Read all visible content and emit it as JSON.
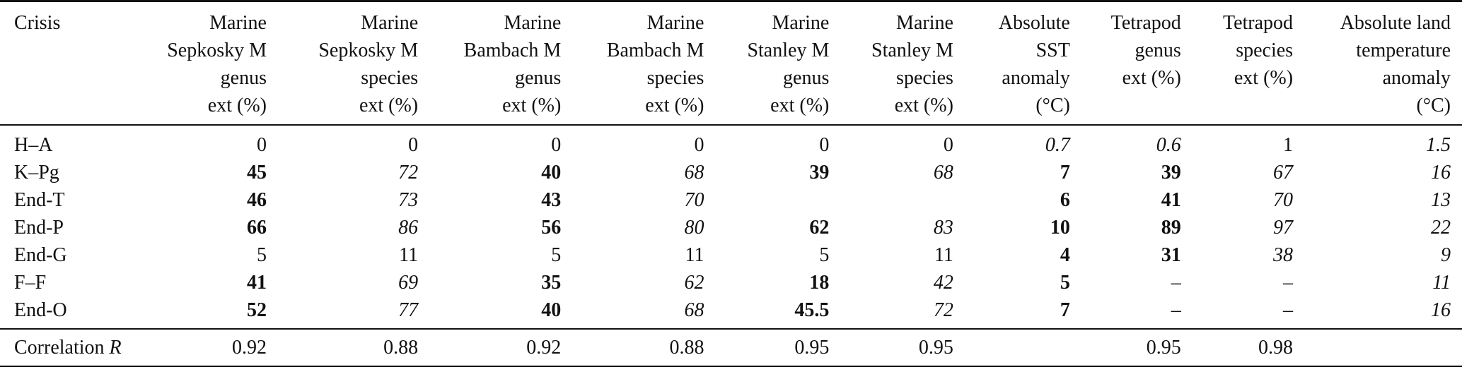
{
  "table": {
    "columns": [
      {
        "lines": [
          "Crisis"
        ]
      },
      {
        "lines": [
          "Marine",
          "Sepkosky M",
          "genus",
          "ext (%)"
        ]
      },
      {
        "lines": [
          "Marine",
          "Sepkosky M",
          "species",
          "ext (%)"
        ]
      },
      {
        "lines": [
          "Marine",
          "Bambach M",
          "genus",
          "ext (%)"
        ]
      },
      {
        "lines": [
          "Marine",
          "Bambach M",
          "species",
          "ext (%)"
        ]
      },
      {
        "lines": [
          "Marine",
          "Stanley M",
          "genus",
          "ext (%)"
        ]
      },
      {
        "lines": [
          "Marine",
          "Stanley M",
          "species",
          "ext (%)"
        ]
      },
      {
        "lines": [
          "Absolute",
          "SST",
          "anomaly",
          "(°C)"
        ]
      },
      {
        "lines": [
          "Tetrapod",
          "genus",
          "ext (%)"
        ]
      },
      {
        "lines": [
          "Tetrapod",
          "species",
          "ext (%)"
        ]
      },
      {
        "lines": [
          "Absolute land",
          "temperature",
          "anomaly",
          "(°C)"
        ]
      }
    ],
    "rows": [
      {
        "cells": [
          {
            "v": "H–A",
            "s": ""
          },
          {
            "v": "0",
            "s": ""
          },
          {
            "v": "0",
            "s": ""
          },
          {
            "v": "0",
            "s": ""
          },
          {
            "v": "0",
            "s": ""
          },
          {
            "v": "0",
            "s": ""
          },
          {
            "v": "0",
            "s": ""
          },
          {
            "v": "0.7",
            "s": "i"
          },
          {
            "v": "0.6",
            "s": "i"
          },
          {
            "v": "1",
            "s": ""
          },
          {
            "v": "1.5",
            "s": "i"
          }
        ]
      },
      {
        "cells": [
          {
            "v": "K–Pg",
            "s": ""
          },
          {
            "v": "45",
            "s": "b"
          },
          {
            "v": "72",
            "s": "i"
          },
          {
            "v": "40",
            "s": "b"
          },
          {
            "v": "68",
            "s": "i"
          },
          {
            "v": "39",
            "s": "b"
          },
          {
            "v": "68",
            "s": "i"
          },
          {
            "v": "7",
            "s": "b"
          },
          {
            "v": "39",
            "s": "b"
          },
          {
            "v": "67",
            "s": "i"
          },
          {
            "v": "16",
            "s": "i"
          }
        ]
      },
      {
        "cells": [
          {
            "v": "End-T",
            "s": ""
          },
          {
            "v": "46",
            "s": "b"
          },
          {
            "v": "73",
            "s": "i"
          },
          {
            "v": "43",
            "s": "b"
          },
          {
            "v": "70",
            "s": "i"
          },
          {
            "v": "",
            "s": ""
          },
          {
            "v": "",
            "s": ""
          },
          {
            "v": "6",
            "s": "b"
          },
          {
            "v": "41",
            "s": "b"
          },
          {
            "v": "70",
            "s": "i"
          },
          {
            "v": "13",
            "s": "i"
          }
        ]
      },
      {
        "cells": [
          {
            "v": "End-P",
            "s": ""
          },
          {
            "v": "66",
            "s": "b"
          },
          {
            "v": "86",
            "s": "i"
          },
          {
            "v": "56",
            "s": "b"
          },
          {
            "v": "80",
            "s": "i"
          },
          {
            "v": "62",
            "s": "b"
          },
          {
            "v": "83",
            "s": "i"
          },
          {
            "v": "10",
            "s": "b"
          },
          {
            "v": "89",
            "s": "b"
          },
          {
            "v": "97",
            "s": "i"
          },
          {
            "v": "22",
            "s": "i"
          }
        ]
      },
      {
        "cells": [
          {
            "v": "End-G",
            "s": ""
          },
          {
            "v": "5",
            "s": ""
          },
          {
            "v": "11",
            "s": ""
          },
          {
            "v": "5",
            "s": ""
          },
          {
            "v": "11",
            "s": ""
          },
          {
            "v": "5",
            "s": ""
          },
          {
            "v": "11",
            "s": ""
          },
          {
            "v": "4",
            "s": "b"
          },
          {
            "v": "31",
            "s": "b"
          },
          {
            "v": "38",
            "s": "i"
          },
          {
            "v": "9",
            "s": "i"
          }
        ]
      },
      {
        "cells": [
          {
            "v": "F–F",
            "s": ""
          },
          {
            "v": "41",
            "s": "b"
          },
          {
            "v": "69",
            "s": "i"
          },
          {
            "v": "35",
            "s": "b"
          },
          {
            "v": "62",
            "s": "i"
          },
          {
            "v": "18",
            "s": "b"
          },
          {
            "v": "42",
            "s": "i"
          },
          {
            "v": "5",
            "s": "b"
          },
          {
            "v": "–",
            "s": ""
          },
          {
            "v": "–",
            "s": ""
          },
          {
            "v": "11",
            "s": "i"
          }
        ]
      },
      {
        "cells": [
          {
            "v": "End-O",
            "s": ""
          },
          {
            "v": "52",
            "s": "b"
          },
          {
            "v": "77",
            "s": "i"
          },
          {
            "v": "40",
            "s": "b"
          },
          {
            "v": "68",
            "s": "i"
          },
          {
            "v": "45.5",
            "s": "b"
          },
          {
            "v": "72",
            "s": "i"
          },
          {
            "v": "7",
            "s": "b"
          },
          {
            "v": "–",
            "s": ""
          },
          {
            "v": "–",
            "s": ""
          },
          {
            "v": "16",
            "s": "i"
          }
        ]
      }
    ],
    "correlation": {
      "label": "Correlation",
      "label_symbol": "R",
      "values": [
        "0.92",
        "0.88",
        "0.92",
        "0.88",
        "0.95",
        "0.95",
        "",
        "0.95",
        "0.98",
        ""
      ]
    }
  }
}
